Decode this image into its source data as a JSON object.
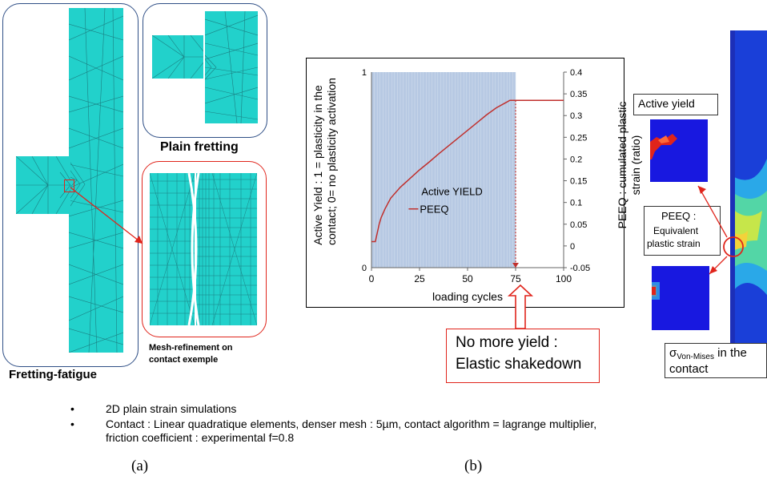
{
  "panel_a": {
    "fatigue_caption": "Fretting-fatigue",
    "plain_caption": "Plain fretting",
    "refine_caption_line1": "Mesh-refinement on",
    "refine_caption_line2": "contact exemple"
  },
  "chart_data": {
    "type": "line",
    "title": "",
    "xlabel": "loading cycles",
    "ylabel_left_line1": "Active Yield : 1 = plasticity in the",
    "ylabel_left_line2": "contact; 0= no plasticity activation",
    "ylabel_right_line1": "PEEQ : cumulated plastic",
    "ylabel_right_line2": "strain (ratio)",
    "x_ticks": [
      "0",
      "25",
      "50",
      "75",
      "100"
    ],
    "y_left_ticks": [
      "0",
      "1"
    ],
    "y_right_ticks": [
      "-0.05",
      "0",
      "0.05",
      "0.1",
      "0.15",
      "0.2",
      "0.25",
      "0.3",
      "0.35",
      "0.4"
    ],
    "xlim": [
      0,
      100
    ],
    "ylim_left": [
      0,
      1
    ],
    "ylim_right": [
      -0.05,
      0.4
    ],
    "series": [
      {
        "name": "Active YIELD",
        "axis": "left",
        "style": "bars",
        "color": "#b7c9e3",
        "x_range": [
          0,
          75
        ],
        "value": 1
      },
      {
        "name": "PEEQ",
        "axis": "right",
        "style": "line",
        "color": "#c0302d",
        "x": [
          0,
          1,
          2,
          3,
          4,
          5,
          7,
          10,
          15,
          20,
          25,
          30,
          35,
          40,
          45,
          50,
          55,
          60,
          65,
          70,
          72,
          75,
          80,
          90,
          100
        ],
        "y": [
          0.01,
          0.01,
          0.01,
          0.03,
          0.05,
          0.065,
          0.085,
          0.11,
          0.135,
          0.155,
          0.175,
          0.193,
          0.212,
          0.23,
          0.248,
          0.266,
          0.284,
          0.302,
          0.318,
          0.33,
          0.335,
          0.335,
          0.335,
          0.335,
          0.335
        ]
      }
    ],
    "marker_x": 75
  },
  "shakedown_note": {
    "line1": "No more yield :",
    "line2": "Elastic shakedown"
  },
  "panel_c": {
    "active_yield_label": "Active yield",
    "peeq_label_line1": "PEEQ :",
    "peeq_label_line2": "Equivalent",
    "peeq_label_line3": "plastic strain",
    "sigma_symbol": "σ",
    "sigma_subscript": "Von-Mises",
    "sigma_tail": " in the",
    "sigma_line2": "contact"
  },
  "bullets": [
    "2D plain strain simulations",
    "Contact : Linear quadratique elements, denser mesh : 5µm, contact algorithm = lagrange multiplier,",
    "friction coefficient : experimental f=0.8"
  ],
  "bullet_symbol": "•",
  "labels": {
    "a": "(a)",
    "b": "(b)"
  },
  "colors": {
    "mesh": "#22d1cb",
    "yield_band": "#b7c9e3",
    "peeq_line": "#c0302d",
    "highlight_red": "#e0241b",
    "panel_blue": "#2f4f86",
    "fem_blue": "#1a1ad8"
  }
}
